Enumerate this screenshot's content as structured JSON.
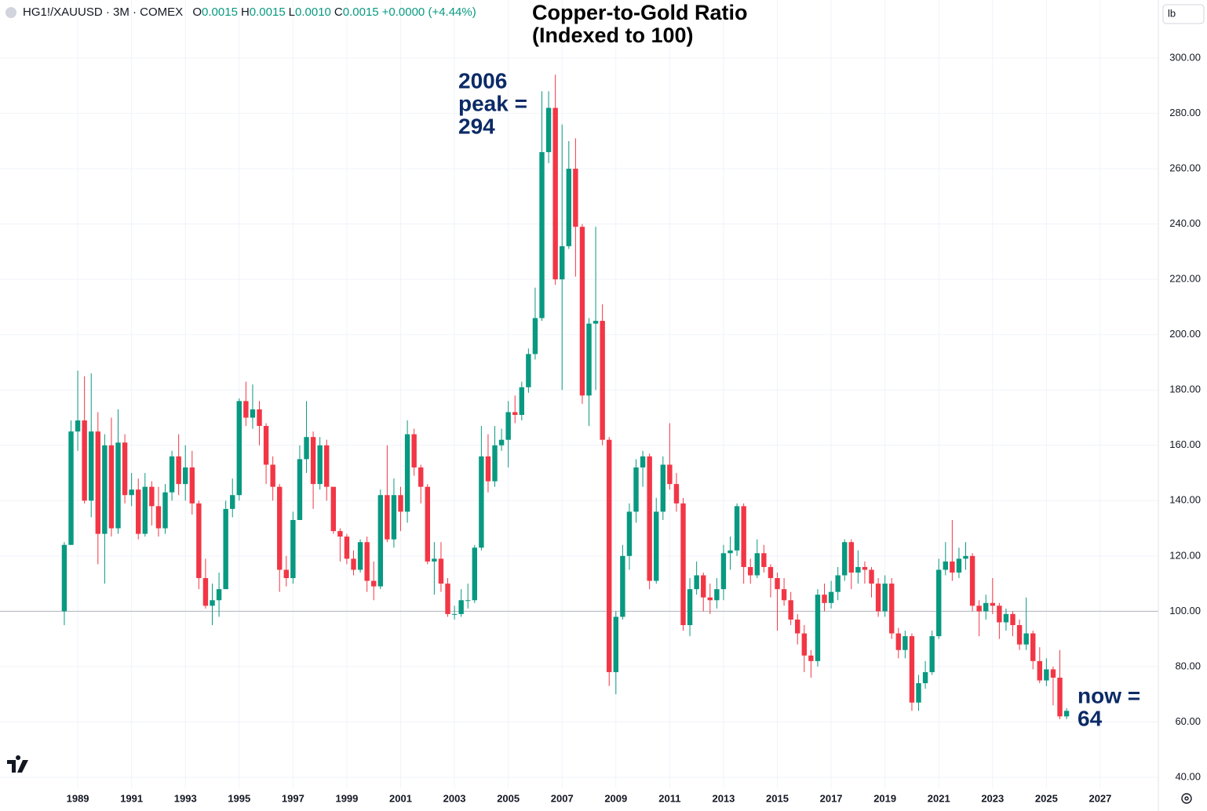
{
  "chart_data": {
    "type": "candlestick",
    "symbol": "HG1!/XAUUSD · 3M · COMEX",
    "ohlc_readout": [
      {
        "key": "O",
        "value": "0.0015"
      },
      {
        "key": "H",
        "value": "0.0015"
      },
      {
        "key": "L",
        "value": "0.0010"
      },
      {
        "key": "C",
        "value": "0.0015"
      }
    ],
    "change": "+0.0000 (+4.44%)",
    "title_lines": [
      "Copper-to-Gold Ratio",
      "(Indexed to 100)"
    ],
    "unit_label": "lb",
    "annotations": [
      {
        "lines": [
          "2006",
          "peak =",
          "294"
        ]
      },
      {
        "lines": [
          "now =",
          "64"
        ]
      }
    ],
    "reference_line": 100,
    "up_color": "#089981",
    "down_color": "#f23645",
    "grid": true,
    "xlim": [
      1986.11,
      2029.16
    ],
    "ylim": [
      36.3,
      321.0
    ],
    "xticks": [
      1989,
      1991,
      1993,
      1995,
      1997,
      1999,
      2001,
      2003,
      2005,
      2007,
      2009,
      2011,
      2013,
      2015,
      2017,
      2019,
      2021,
      2023,
      2025,
      2027
    ],
    "yticks": [
      {
        "value": 40,
        "label": "40.00"
      },
      {
        "value": 60,
        "label": "60.00"
      },
      {
        "value": 80,
        "label": "80.00"
      },
      {
        "value": 100,
        "label": "100.00"
      },
      {
        "value": 120,
        "label": "120.00"
      },
      {
        "value": 140,
        "label": "140.00"
      },
      {
        "value": 160,
        "label": "160.00"
      },
      {
        "value": 180,
        "label": "180.00"
      },
      {
        "value": 200,
        "label": "200.00"
      },
      {
        "value": 220,
        "label": "220.00"
      },
      {
        "value": 240,
        "label": "240.00"
      },
      {
        "value": 260,
        "label": "260.00"
      },
      {
        "value": 280,
        "label": "280.00"
      },
      {
        "value": 300,
        "label": "300.00"
      }
    ],
    "x": [
      1988.5,
      1988.75,
      1989,
      1989.25,
      1989.5,
      1989.75,
      1990,
      1990.25,
      1990.5,
      1990.75,
      1991,
      1991.25,
      1991.5,
      1991.75,
      1992,
      1992.25,
      1992.5,
      1992.75,
      1993,
      1993.25,
      1993.5,
      1993.75,
      1994,
      1994.25,
      1994.5,
      1994.75,
      1995,
      1995.25,
      1995.5,
      1995.75,
      1996,
      1996.25,
      1996.5,
      1996.75,
      1997,
      1997.25,
      1997.5,
      1997.75,
      1998,
      1998.25,
      1998.5,
      1998.75,
      1999,
      1999.25,
      1999.5,
      1999.75,
      2000,
      2000.25,
      2000.5,
      2000.75,
      2001,
      2001.25,
      2001.5,
      2001.75,
      2002,
      2002.25,
      2002.5,
      2002.75,
      2003,
      2003.25,
      2003.5,
      2003.75,
      2004,
      2004.25,
      2004.5,
      2004.75,
      2005,
      2005.25,
      2005.5,
      2005.75,
      2006,
      2006.25,
      2006.5,
      2006.75,
      2007,
      2007.25,
      2007.5,
      2007.75,
      2008,
      2008.25,
      2008.5,
      2008.75,
      2009,
      2009.25,
      2009.5,
      2009.75,
      2010,
      2010.25,
      2010.5,
      2010.75,
      2011,
      2011.25,
      2011.5,
      2011.75,
      2012,
      2012.25,
      2012.5,
      2012.75,
      2013,
      2013.25,
      2013.5,
      2013.75,
      2014,
      2014.25,
      2014.5,
      2014.75,
      2015,
      2015.25,
      2015.5,
      2015.75,
      2016,
      2016.25,
      2016.5,
      2016.75,
      2017,
      2017.25,
      2017.5,
      2017.75,
      2018,
      2018.25,
      2018.5,
      2018.75,
      2019,
      2019.25,
      2019.5,
      2019.75,
      2020,
      2020.25,
      2020.5,
      2020.75,
      2021,
      2021.25,
      2021.5,
      2021.75,
      2022,
      2022.25,
      2022.5,
      2022.75,
      2023,
      2023.25,
      2023.5,
      2023.75,
      2024,
      2024.25,
      2024.5,
      2024.75,
      2025,
      2025.25,
      2025.5,
      2025.75
    ],
    "open": [
      100,
      124,
      165,
      169,
      140,
      165,
      128,
      160,
      130,
      161,
      142,
      144,
      128,
      145,
      138,
      130,
      143,
      156,
      146,
      152,
      139,
      112,
      102,
      104,
      108,
      137,
      142,
      176,
      170,
      173,
      167,
      153,
      145,
      115,
      112,
      133,
      155,
      163,
      146,
      160,
      145,
      129,
      127,
      119,
      115,
      125,
      111,
      109,
      142,
      126,
      142,
      136,
      164,
      152,
      145,
      118,
      119,
      110,
      99,
      99,
      104,
      104,
      123,
      156,
      147,
      160,
      162,
      172,
      171,
      181,
      193,
      206,
      266,
      282,
      220,
      232,
      260,
      239,
      178,
      204,
      205,
      162,
      78,
      98,
      120,
      136,
      152,
      156,
      111,
      136,
      153,
      146,
      139,
      95,
      108,
      113,
      105,
      104,
      108,
      121,
      122,
      138,
      116,
      113,
      121,
      116,
      112,
      108,
      104,
      97,
      92,
      84,
      82,
      106,
      103,
      107,
      113,
      125,
      114,
      116,
      115,
      110,
      100,
      110,
      92,
      86,
      91,
      67,
      74,
      78,
      91,
      115,
      118,
      114,
      119,
      120,
      102,
      100,
      103,
      102,
      96,
      99,
      95,
      88,
      92,
      82,
      75,
      79,
      76,
      62
    ],
    "high": [
      125,
      169,
      187,
      185,
      186,
      172,
      164,
      170,
      173,
      164,
      150,
      148,
      150,
      147,
      145,
      146,
      158,
      164,
      160,
      158,
      140,
      119,
      110,
      114,
      140,
      148,
      177,
      183,
      182,
      176,
      168,
      156,
      146,
      120,
      136,
      160,
      176,
      165,
      163,
      162,
      145,
      130,
      128,
      122,
      126,
      127,
      118,
      144,
      160,
      148,
      145,
      169,
      166,
      153,
      146,
      125,
      125,
      112,
      102,
      108,
      110,
      124,
      167,
      164,
      167,
      166,
      176,
      178,
      183,
      195,
      217,
      288,
      288,
      294,
      276,
      270,
      271,
      240,
      206,
      239,
      211,
      163,
      100,
      124,
      139,
      155,
      158,
      157,
      141,
      156,
      168,
      150,
      141,
      112,
      118,
      114,
      110,
      112,
      124,
      127,
      139,
      139,
      119,
      126,
      124,
      117,
      114,
      112,
      107,
      99,
      95,
      86,
      108,
      110,
      111,
      116,
      126,
      126,
      122,
      118,
      116,
      112,
      113,
      112,
      94,
      93,
      92,
      77,
      82,
      93,
      119,
      125,
      133,
      123,
      125,
      121,
      104,
      106,
      112,
      103,
      101,
      100,
      97,
      105,
      93,
      87,
      83,
      80,
      86,
      65
    ],
    "low": [
      95,
      124,
      158,
      139,
      134,
      117,
      110,
      127,
      128,
      139,
      138,
      126,
      127,
      131,
      127,
      128,
      140,
      142,
      140,
      135,
      108,
      101,
      95,
      98,
      108,
      134,
      140,
      167,
      166,
      160,
      146,
      140,
      107,
      109,
      110,
      133,
      150,
      137,
      144,
      140,
      128,
      118,
      117,
      113,
      114,
      107,
      104,
      108,
      125,
      123,
      129,
      132,
      149,
      139,
      117,
      106,
      107,
      98,
      97,
      98,
      101,
      103,
      122,
      143,
      145,
      158,
      152,
      168,
      169,
      179,
      191,
      205,
      262,
      218,
      180,
      231,
      221,
      175,
      167,
      180,
      160,
      73,
      70,
      97,
      115,
      132,
      145,
      108,
      110,
      133,
      144,
      136,
      93,
      91,
      106,
      100,
      99,
      101,
      104,
      115,
      120,
      110,
      110,
      112,
      114,
      105,
      93,
      102,
      95,
      88,
      78,
      76,
      80,
      100,
      101,
      104,
      111,
      108,
      110,
      110,
      105,
      98,
      98,
      90,
      83,
      83,
      64,
      64,
      72,
      77,
      90,
      113,
      111,
      112,
      115,
      100,
      91,
      97,
      99,
      90,
      93,
      91,
      86,
      86,
      79,
      74,
      73,
      66,
      61,
      61
    ],
    "close": [
      124,
      165,
      169,
      140,
      165,
      128,
      160,
      130,
      161,
      142,
      144,
      128,
      145,
      138,
      130,
      143,
      156,
      146,
      152,
      139,
      112,
      102,
      104,
      108,
      137,
      142,
      176,
      170,
      173,
      167,
      153,
      145,
      115,
      112,
      133,
      155,
      163,
      146,
      160,
      145,
      129,
      127,
      119,
      115,
      125,
      111,
      109,
      142,
      126,
      142,
      136,
      164,
      152,
      145,
      118,
      119,
      110,
      99,
      99,
      104,
      104,
      123,
      156,
      147,
      160,
      162,
      172,
      171,
      181,
      193,
      206,
      266,
      282,
      220,
      232,
      260,
      239,
      178,
      204,
      205,
      162,
      78,
      98,
      120,
      136,
      152,
      156,
      111,
      136,
      153,
      146,
      139,
      95,
      108,
      113,
      105,
      104,
      108,
      121,
      122,
      138,
      116,
      113,
      121,
      116,
      112,
      108,
      104,
      97,
      92,
      84,
      82,
      106,
      103,
      107,
      113,
      125,
      114,
      116,
      115,
      110,
      100,
      110,
      92,
      86,
      91,
      67,
      74,
      78,
      91,
      115,
      118,
      114,
      119,
      120,
      102,
      100,
      103,
      102,
      96,
      99,
      95,
      88,
      92,
      82,
      75,
      79,
      76,
      62,
      64
    ]
  }
}
